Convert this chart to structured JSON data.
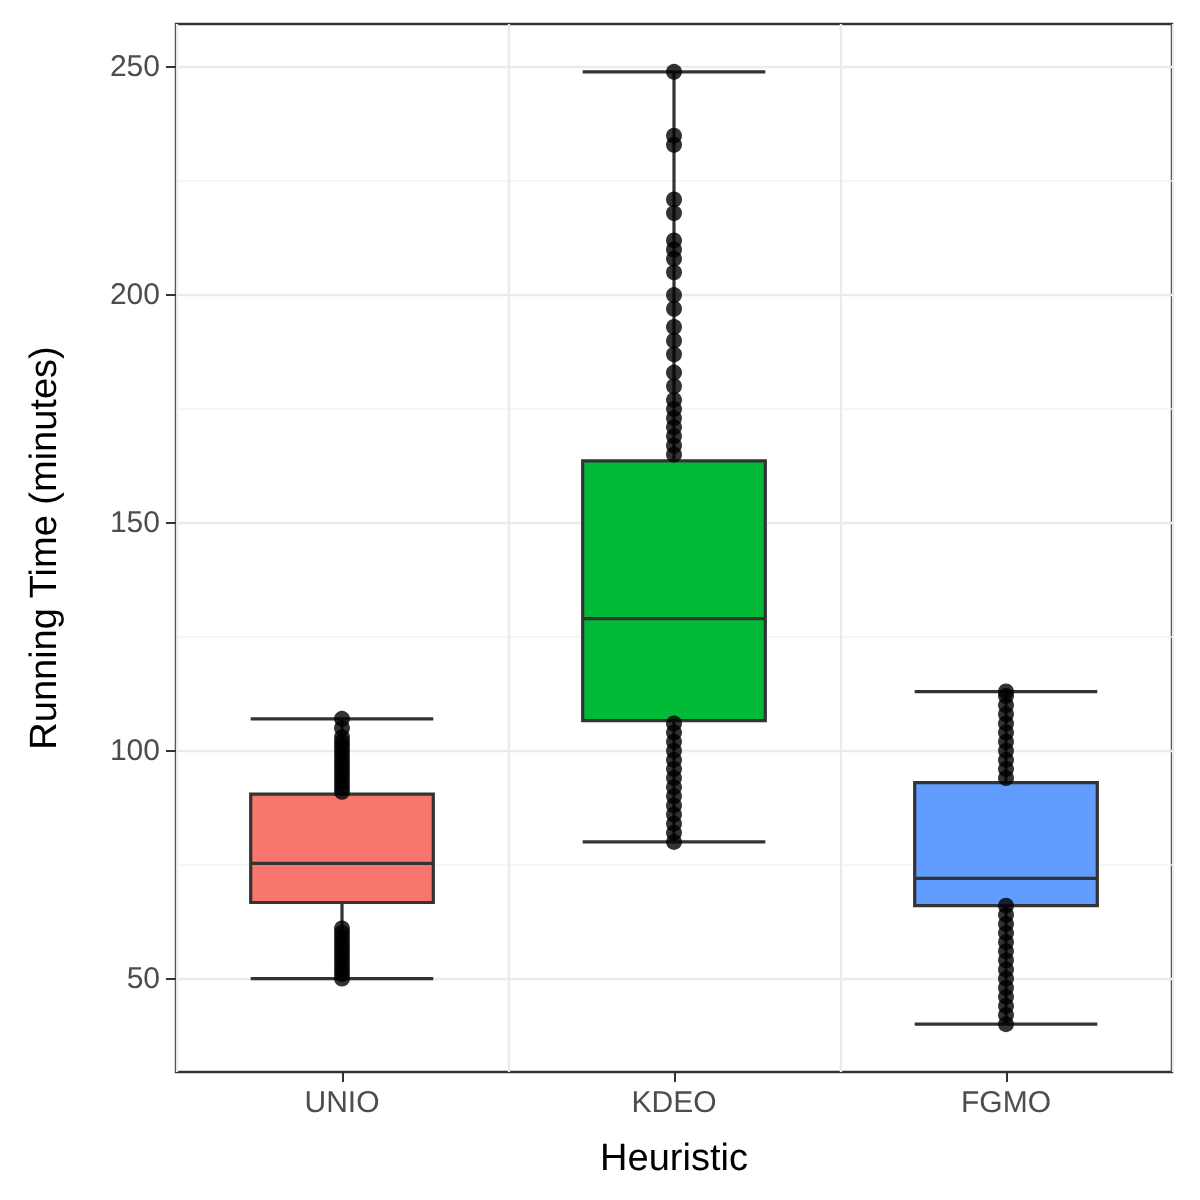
{
  "chart_data": {
    "type": "box",
    "xlabel": "Heuristic",
    "ylabel": "Running Time (minutes)",
    "categories": [
      "UNIO",
      "KDEO",
      "FGMO"
    ],
    "colors": [
      "#f8766d",
      "#00ba38",
      "#619cff"
    ],
    "boxes": [
      {
        "low": 50,
        "q1": 66.7,
        "median": 75.3,
        "q3": 90.5,
        "high": 107,
        "outliers": [
          50,
          51,
          52,
          53,
          54,
          55,
          56,
          57,
          58,
          59,
          60,
          61,
          91,
          92,
          93,
          94,
          95,
          96,
          97,
          98,
          99,
          100,
          101,
          102,
          103,
          105,
          107
        ]
      },
      {
        "low": 80,
        "q1": 106.6,
        "median": 129,
        "q3": 163.6,
        "high": 249,
        "outliers": [
          80,
          82,
          84,
          86,
          88,
          90,
          92,
          94,
          96,
          98,
          100,
          102,
          104,
          106,
          165,
          167,
          169,
          171,
          173,
          175,
          177,
          180,
          183,
          187,
          190,
          193,
          197,
          200,
          205,
          208,
          210,
          212,
          218,
          221,
          233,
          235,
          249
        ]
      },
      {
        "low": 40,
        "q1": 66,
        "median": 72,
        "q3": 93,
        "high": 113,
        "outliers": [
          40,
          42,
          44,
          46,
          48,
          50,
          52,
          54,
          56,
          58,
          60,
          62,
          64,
          66,
          94,
          96,
          98,
          100,
          102,
          104,
          106,
          108,
          110,
          112,
          113
        ]
      }
    ],
    "ylim": [
      29.5,
      259.5
    ],
    "yticks": [
      50,
      100,
      150,
      200,
      250
    ],
    "grid": true
  }
}
